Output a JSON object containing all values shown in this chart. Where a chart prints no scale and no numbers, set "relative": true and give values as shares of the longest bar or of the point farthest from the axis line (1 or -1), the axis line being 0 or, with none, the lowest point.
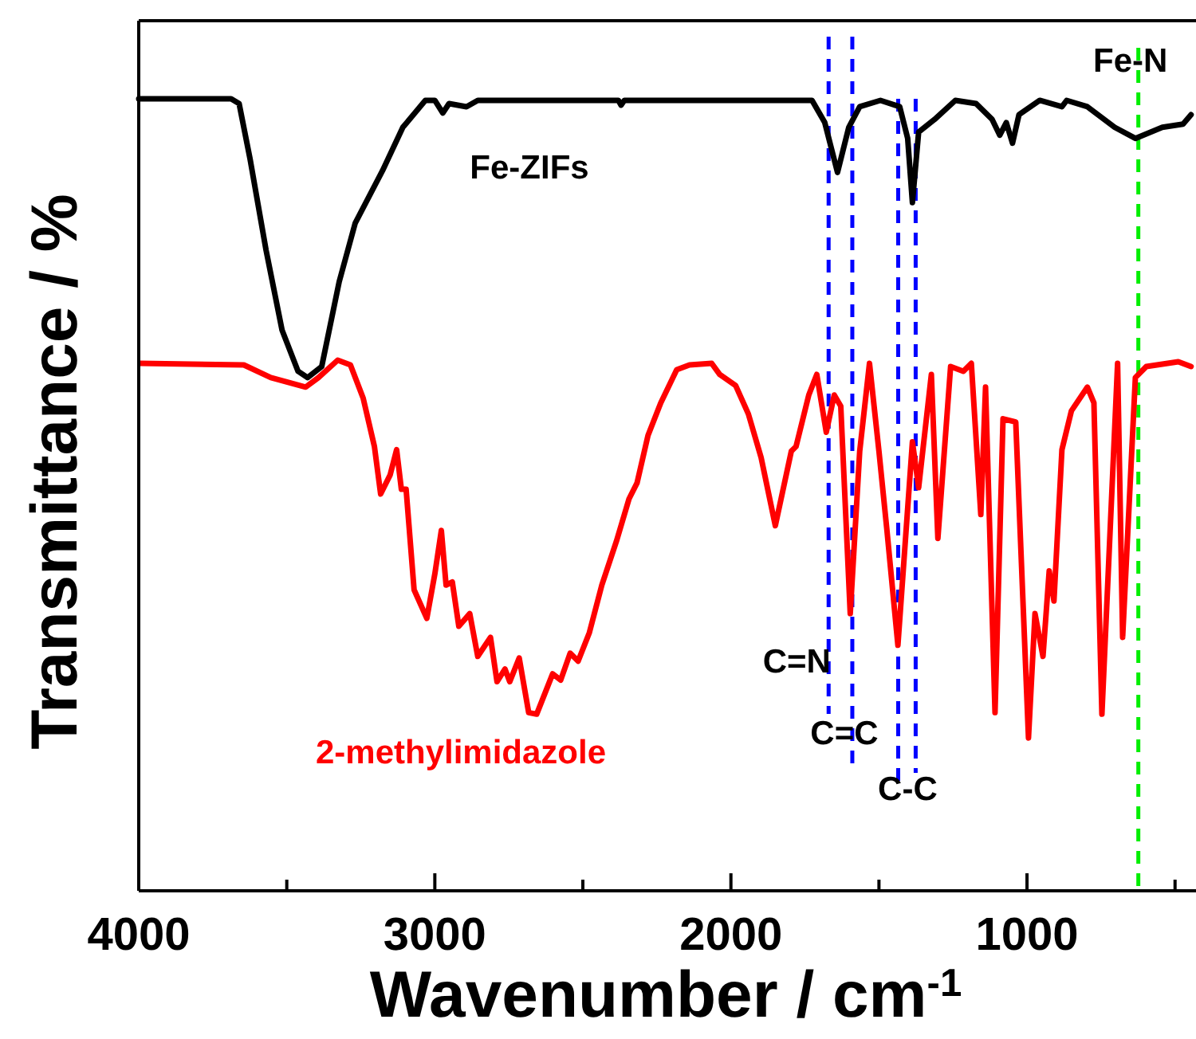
{
  "chart_data": {
    "type": "line",
    "relative": true,
    "xlabel": "Wavenumber / cm$^{-1}$",
    "ylabel": "Transmittance / %",
    "xlim": [
      4000,
      440
    ],
    "xticks": [
      4000,
      3000,
      2000,
      1000,
      {
        "value": 3500,
        "label": null
      },
      {
        "value": 2500,
        "label": null
      },
      {
        "value": 1500,
        "label": null
      },
      {
        "value": 500,
        "label": null
      }
    ],
    "legend": false,
    "grid": false,
    "marker": "none",
    "line_style": "solid",
    "ref_lines": [
      {
        "axis": "x",
        "value": 1670,
        "label": "C=N",
        "color": "#0000ff",
        "line_style": "dashed"
      },
      {
        "axis": "x",
        "value": 1590,
        "label": "C=C",
        "color": "#0000ff",
        "line_style": "dashed"
      },
      {
        "axis": "x",
        "value": 1435,
        "color": "#0000ff",
        "line_style": "dashed"
      },
      {
        "axis": "x",
        "value": 1376,
        "label": "C-C",
        "color": "#0000ff",
        "line_style": "dashed"
      },
      {
        "axis": "x",
        "value": 624,
        "label": "Fe-N",
        "color": "#00ee00",
        "line_style": "dashed"
      }
    ],
    "series": [
      {
        "name": "Fe-ZIFs",
        "color": "#000000",
        "x": [
          4000,
          3688,
          3661,
          3624,
          3570,
          3516,
          3462,
          3430,
          3382,
          3323,
          3269,
          3177,
          3108,
          3032,
          3000,
          2973,
          2952,
          2893,
          2855,
          2380,
          2371,
          2360,
          1726,
          1683,
          1640,
          1602,
          1565,
          1495,
          1430,
          1403,
          1387,
          1366,
          1312,
          1242,
          1172,
          1118,
          1092,
          1070,
          1049,
          1027,
          957,
          882,
          866,
          796,
          704,
          634,
          543,
          473,
          446
        ],
        "values": [
          1.0,
          1.0,
          0.994,
          0.924,
          0.809,
          0.708,
          0.656,
          0.648,
          0.662,
          0.769,
          0.843,
          0.909,
          0.964,
          0.998,
          0.998,
          0.982,
          0.994,
          0.99,
          0.998,
          0.998,
          0.992,
          0.998,
          0.998,
          0.97,
          0.907,
          0.964,
          0.99,
          0.998,
          0.99,
          0.95,
          0.869,
          0.958,
          0.974,
          0.998,
          0.994,
          0.974,
          0.954,
          0.97,
          0.944,
          0.98,
          0.998,
          0.99,
          0.998,
          0.99,
          0.964,
          0.95,
          0.964,
          0.968,
          0.98
        ]
      },
      {
        "name": "2-methylimidazole",
        "color": "#ff0000",
        "x": [
          3995,
          3645,
          3554,
          3436,
          3393,
          3328,
          3285,
          3242,
          3204,
          3183,
          3151,
          3129,
          3113,
          3097,
          3070,
          3027,
          3000,
          2978,
          2962,
          2941,
          2919,
          2882,
          2855,
          2812,
          2790,
          2763,
          2747,
          2715,
          2683,
          2656,
          2602,
          2575,
          2543,
          2516,
          2478,
          2436,
          2387,
          2344,
          2317,
          2280,
          2237,
          2183,
          2140,
          2065,
          2038,
          1984,
          1941,
          1898,
          1850,
          1796,
          1780,
          1737,
          1710,
          1678,
          1651,
          1629,
          1597,
          1565,
          1532,
          1500,
          1473,
          1436,
          1387,
          1366,
          1323,
          1301,
          1258,
          1215,
          1188,
          1156,
          1140,
          1108,
          1081,
          1038,
          995,
          973,
          946,
          925,
          909,
          882,
          850,
          796,
          774,
          747,
          694,
          677,
          634,
          597,
          489,
          446
        ],
        "values": [
          0.666,
          0.664,
          0.648,
          0.636,
          0.648,
          0.67,
          0.664,
          0.622,
          0.561,
          0.501,
          0.525,
          0.557,
          0.507,
          0.507,
          0.38,
          0.344,
          0.4,
          0.455,
          0.386,
          0.39,
          0.334,
          0.35,
          0.296,
          0.32,
          0.264,
          0.28,
          0.264,
          0.294,
          0.225,
          0.223,
          0.274,
          0.266,
          0.3,
          0.29,
          0.326,
          0.386,
          0.441,
          0.495,
          0.515,
          0.575,
          0.616,
          0.658,
          0.664,
          0.666,
          0.652,
          0.638,
          0.602,
          0.547,
          0.461,
          0.555,
          0.561,
          0.626,
          0.652,
          0.579,
          0.626,
          0.612,
          0.35,
          0.555,
          0.666,
          0.555,
          0.455,
          0.31,
          0.567,
          0.509,
          0.652,
          0.445,
          0.662,
          0.656,
          0.666,
          0.475,
          0.636,
          0.225,
          0.596,
          0.592,
          0.193,
          0.35,
          0.296,
          0.404,
          0.366,
          0.557,
          0.606,
          0.636,
          0.616,
          0.223,
          0.666,
          0.32,
          0.648,
          0.662,
          0.668,
          0.662
        ]
      }
    ]
  }
}
